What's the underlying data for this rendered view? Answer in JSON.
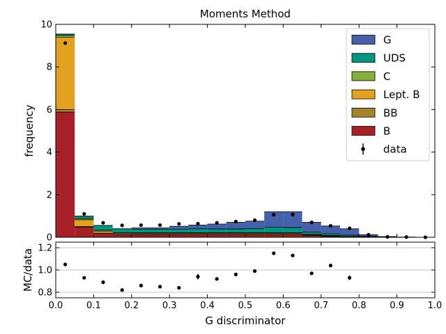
{
  "title": "Moments Method",
  "chart_data": [
    {
      "type": "bar",
      "stacked": true,
      "title": "Moments Method",
      "xlabel": "",
      "ylabel": "frequency",
      "xlim": [
        0.0,
        1.0
      ],
      "ylim": [
        0,
        10
      ],
      "yticks": [
        0,
        2,
        4,
        6,
        8,
        10
      ],
      "bin_edges": [
        0.0,
        0.05,
        0.1,
        0.15,
        0.2,
        0.25,
        0.3,
        0.35,
        0.4,
        0.45,
        0.5,
        0.55,
        0.6,
        0.65,
        0.7,
        0.75,
        0.8,
        0.85,
        0.9,
        0.95,
        1.0
      ],
      "series": [
        {
          "name": "B",
          "color": "#a52127",
          "values": [
            5.88,
            0.48,
            0.18,
            0.12,
            0.12,
            0.12,
            0.12,
            0.12,
            0.12,
            0.12,
            0.12,
            0.12,
            0.12,
            0.08,
            0.04,
            0.02,
            0.02,
            0.0,
            0.0,
            0.0
          ]
        },
        {
          "name": "BB",
          "color": "#a6822f",
          "values": [
            0.12,
            0.02,
            0.01,
            0.01,
            0.01,
            0.01,
            0.01,
            0.01,
            0.01,
            0.01,
            0.01,
            0.01,
            0.01,
            0.01,
            0.01,
            0.0,
            0.0,
            0.0,
            0.0,
            0.0
          ]
        },
        {
          "name": "Lept. B",
          "color": "#e2a11e",
          "values": [
            3.4,
            0.32,
            0.1,
            0.06,
            0.05,
            0.05,
            0.05,
            0.05,
            0.05,
            0.05,
            0.05,
            0.05,
            0.05,
            0.03,
            0.02,
            0.01,
            0.0,
            0.0,
            0.0,
            0.0
          ]
        },
        {
          "name": "C",
          "color": "#86b03b",
          "values": [
            0.08,
            0.06,
            0.04,
            0.03,
            0.03,
            0.03,
            0.03,
            0.03,
            0.03,
            0.03,
            0.03,
            0.03,
            0.03,
            0.02,
            0.01,
            0.01,
            0.0,
            0.0,
            0.0,
            0.0
          ]
        },
        {
          "name": "UDS",
          "color": "#009780",
          "values": [
            0.06,
            0.12,
            0.23,
            0.18,
            0.17,
            0.17,
            0.17,
            0.19,
            0.18,
            0.18,
            0.2,
            0.26,
            0.25,
            0.1,
            0.08,
            0.06,
            0.02,
            0.01,
            0.0,
            0.0
          ]
        },
        {
          "name": "G",
          "color": "#4561a9",
          "values": [
            0.0,
            0.0,
            0.0,
            0.0,
            0.06,
            0.06,
            0.14,
            0.17,
            0.23,
            0.31,
            0.35,
            0.73,
            0.74,
            0.46,
            0.37,
            0.3,
            0.08,
            0.02,
            0.01,
            0.0
          ]
        }
      ],
      "data": {
        "name": "data",
        "x": [
          0.025,
          0.075,
          0.125,
          0.175,
          0.225,
          0.275,
          0.325,
          0.375,
          0.425,
          0.475,
          0.525,
          0.575,
          0.625,
          0.675,
          0.725,
          0.775,
          0.825,
          0.875,
          0.925,
          0.975
        ],
        "y": [
          9.12,
          1.1,
          0.68,
          0.56,
          0.57,
          0.57,
          0.63,
          0.64,
          0.68,
          0.74,
          0.8,
          1.06,
          1.07,
          0.7,
          0.54,
          0.42,
          0.12,
          0.02,
          0.01,
          0.0
        ]
      },
      "legend_loc": "upper-right"
    },
    {
      "type": "scatter",
      "xlabel": "G discriminator",
      "ylabel": "MC/data",
      "xlim": [
        0.0,
        1.0
      ],
      "ylim": [
        0.75,
        1.25
      ],
      "xticks": [
        0.0,
        0.1,
        0.2,
        0.3,
        0.4,
        0.5,
        0.6,
        0.7,
        0.8,
        0.9,
        1.0
      ],
      "yticks": [
        0.8,
        1.0,
        1.2
      ],
      "grid_y": [
        0.8,
        1.0,
        1.2
      ],
      "x": [
        0.025,
        0.075,
        0.125,
        0.175,
        0.225,
        0.275,
        0.325,
        0.375,
        0.425,
        0.475,
        0.525,
        0.575,
        0.625,
        0.675,
        0.725,
        0.775
      ],
      "y": [
        1.05,
        0.93,
        0.89,
        0.82,
        0.86,
        0.85,
        0.84,
        0.94,
        0.92,
        0.96,
        0.99,
        1.15,
        1.13,
        0.97,
        1.04,
        0.93
      ],
      "err": [
        0.005,
        0.01,
        0.015,
        0.015,
        0.015,
        0.015,
        0.015,
        0.025,
        0.015,
        0.015,
        0.015,
        0.015,
        0.015,
        0.015,
        0.015,
        0.02
      ]
    }
  ]
}
